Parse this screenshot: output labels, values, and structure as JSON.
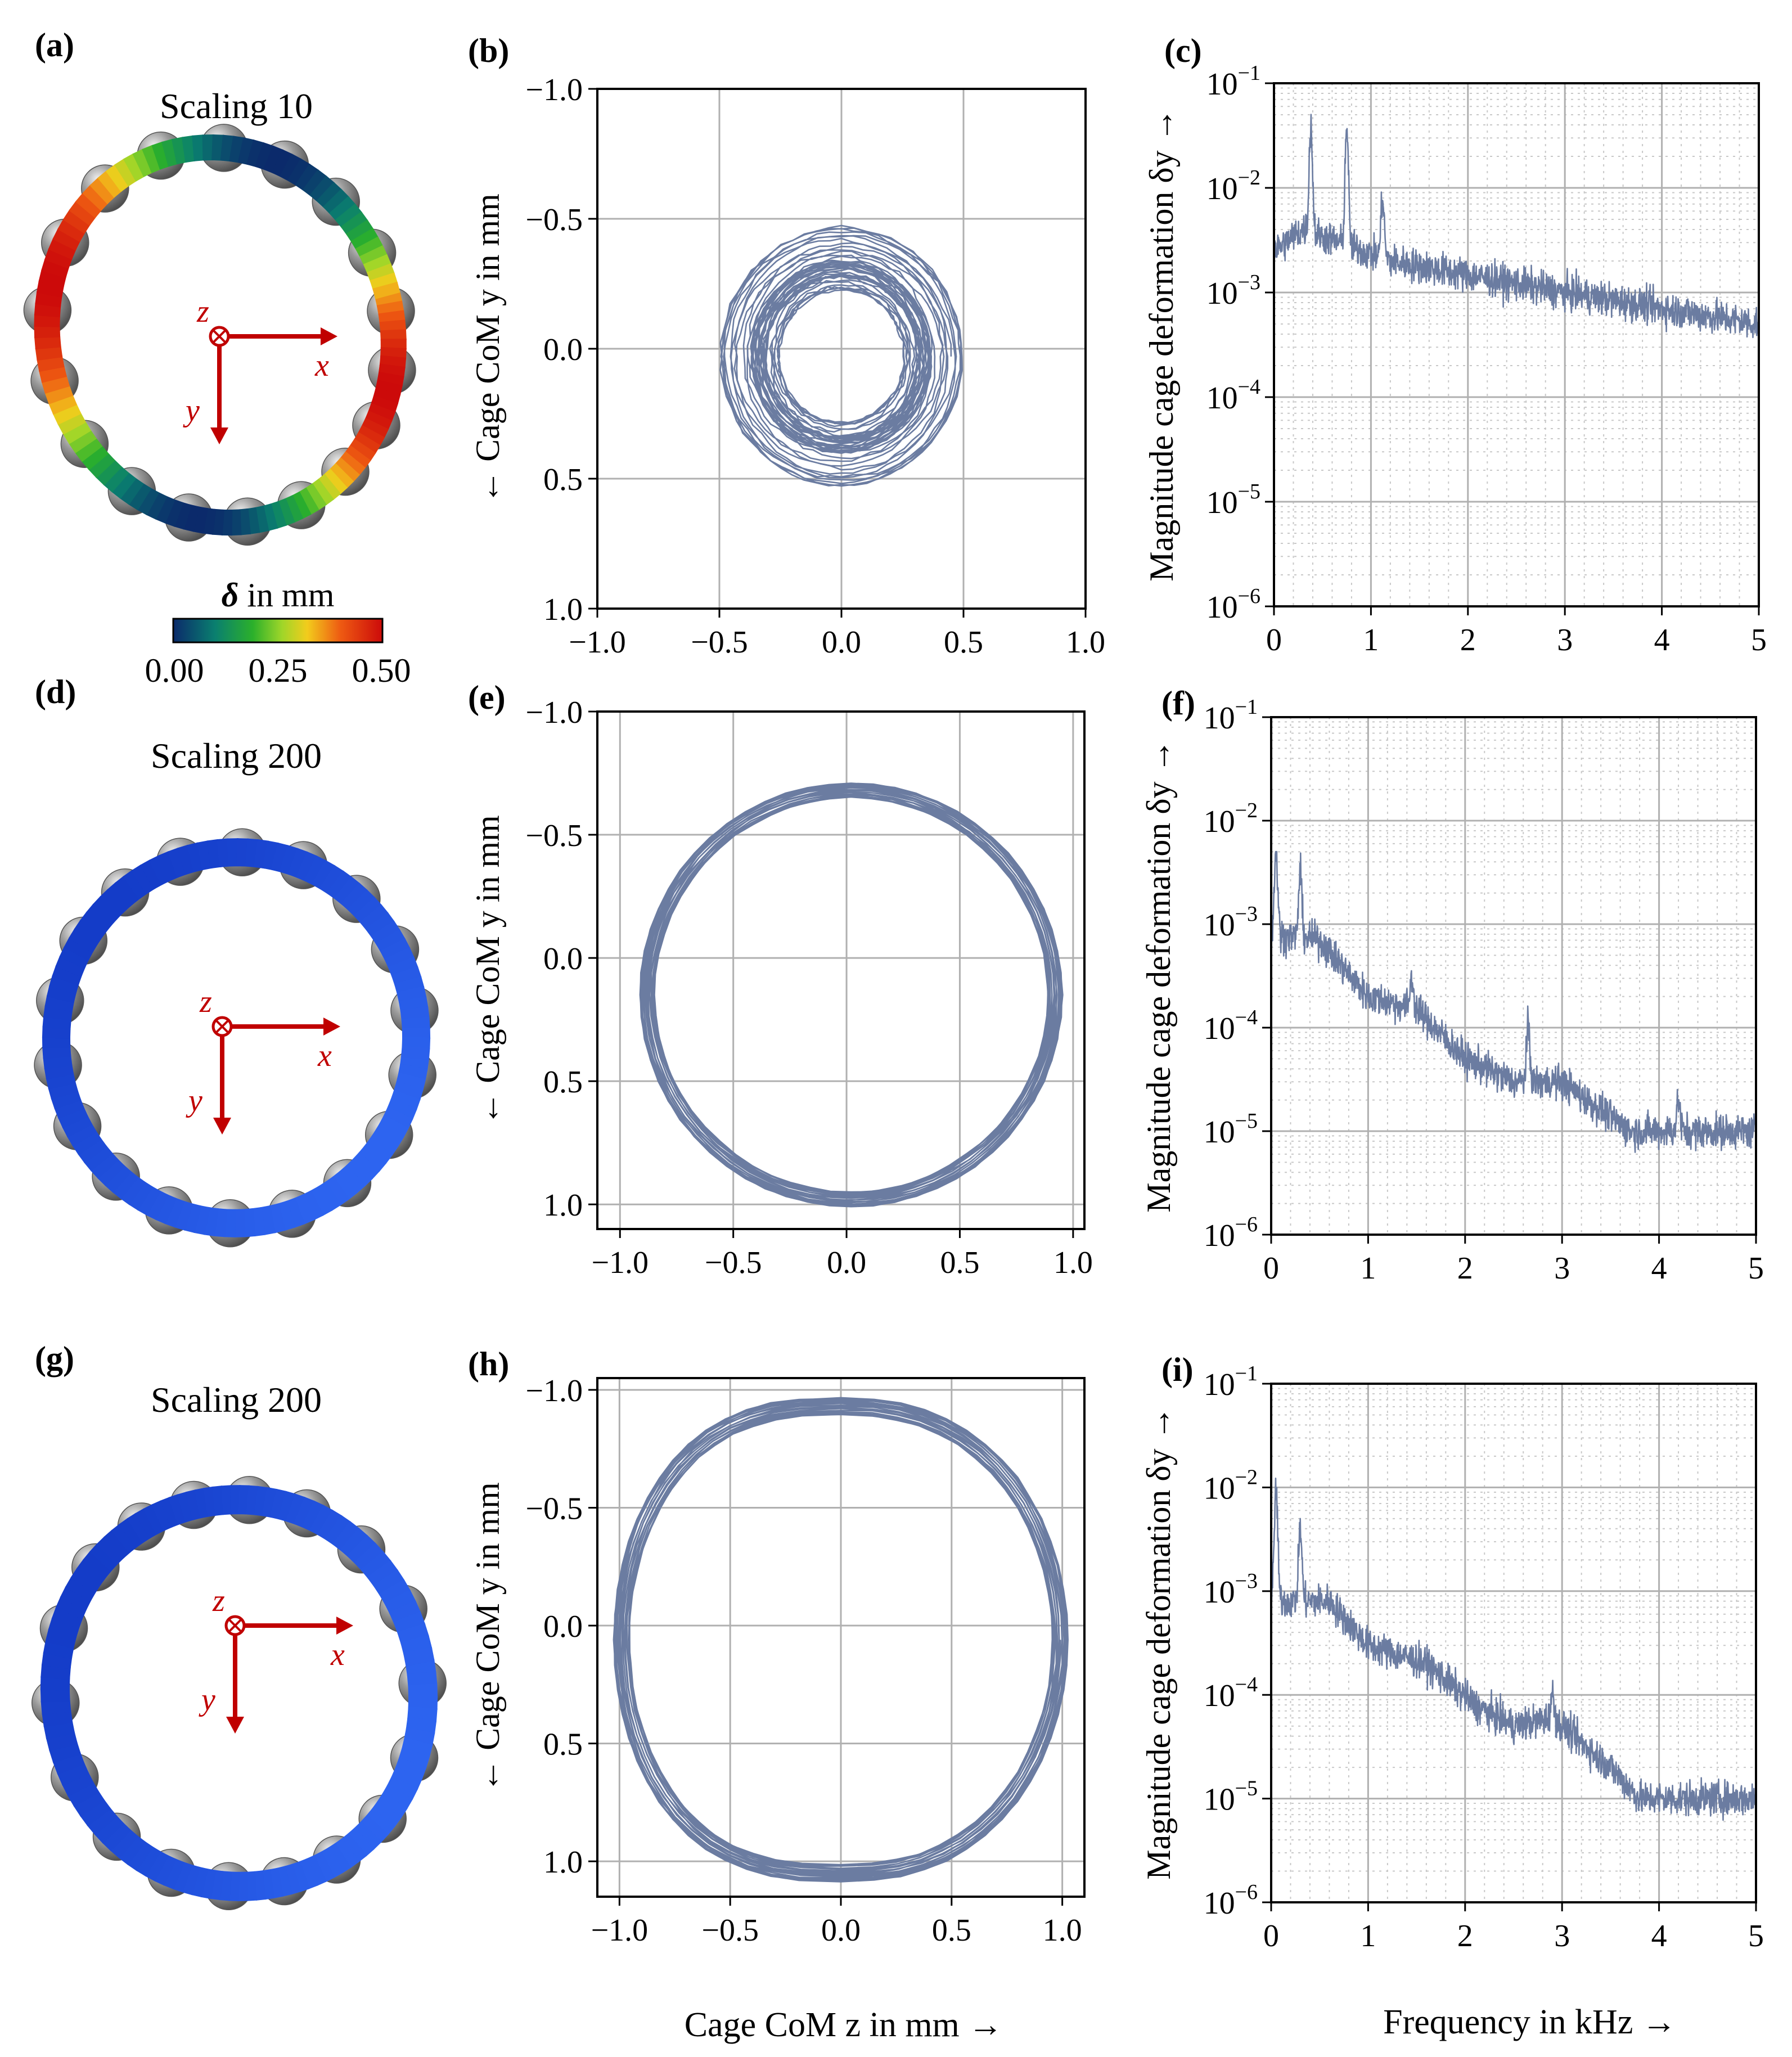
{
  "figure": {
    "xlabel_orbit": "Cage CoM z in mm →",
    "xlabel_freq": "Frequency in kHz →",
    "ylabel_orbit": "← Cage CoM y in mm",
    "ylabel_freq": "Magnitude cage deformation δy →",
    "colors": {
      "trace": "#6b7ca1",
      "axis": "#000000",
      "grid": "#b0b0b0",
      "minor_grid": "#c8c8c8",
      "arrow": "#c00000",
      "ball": "#8a8a8a"
    }
  },
  "panels": [
    {
      "id": "a",
      "letter": "(a)",
      "title": "Scaling 10",
      "colormap": "jet"
    },
    {
      "id": "d",
      "letter": "(d)",
      "title": "Scaling 200",
      "colormap": "blue"
    },
    {
      "id": "g",
      "letter": "(g)",
      "title": "Scaling 200",
      "colormap": "blue"
    }
  ],
  "axes_labels": {
    "x": "x",
    "y": "y",
    "z": "z"
  },
  "colorbar": {
    "label_symbol": "δ",
    "label_unit": " in mm",
    "ticks": [
      "0.00",
      "0.25",
      "0.50"
    ],
    "range": [
      0,
      0.5
    ]
  },
  "chart_data": [
    {
      "id": "b",
      "letter": "(b)",
      "type": "line",
      "xlim": [
        -1.0,
        1.0
      ],
      "ylim": [
        1.0,
        -1.0
      ],
      "xticks": [
        -1.0,
        -0.5,
        0.0,
        0.5,
        1.0
      ],
      "xticklabels": [
        "−1.0",
        "−0.5",
        "0.0",
        "0.5",
        "1.0"
      ],
      "yticks": [
        -1.0,
        -0.5,
        0.0,
        0.5,
        1.0
      ],
      "yticklabels": [
        "−1.0",
        "−0.5",
        "0.0",
        "0.5",
        "1.0"
      ],
      "series": [
        {
          "name": "cage CoM orbit",
          "center": [
            0.0,
            0.03
          ],
          "inner_radius": 0.22,
          "outer_radius": 0.5,
          "loops": 40
        }
      ]
    },
    {
      "id": "c",
      "letter": "(c)",
      "type": "line",
      "yscale": "log",
      "xlim": [
        0,
        5
      ],
      "ylim": [
        1e-06,
        0.1
      ],
      "xticks": [
        0,
        1,
        2,
        3,
        4,
        5
      ],
      "xticklabels": [
        "0",
        "1",
        "2",
        "3",
        "4",
        "5"
      ],
      "yticks": [
        -6,
        -5,
        -4,
        -3,
        -2,
        -1
      ],
      "ytick_base": "10",
      "series": [
        {
          "name": "spectrum",
          "base_points": [
            [
              0,
              0.0025
            ],
            [
              0.3,
              0.004
            ],
            [
              1.2,
              0.002
            ],
            [
              3,
              0.001
            ],
            [
              5,
              0.0005
            ]
          ],
          "peaks": [
            [
              0.38,
              0.04
            ],
            [
              0.75,
              0.04
            ],
            [
              1.12,
              0.008
            ]
          ]
        }
      ]
    },
    {
      "id": "e",
      "letter": "(e)",
      "type": "line",
      "xlim": [
        -1.1,
        1.05
      ],
      "ylim": [
        1.1,
        -1.0
      ],
      "xticks": [
        -1.0,
        -0.5,
        0.0,
        0.5,
        1.0
      ],
      "xticklabels": [
        "−1.0",
        "−0.5",
        "0.0",
        "0.5",
        "1.0"
      ],
      "yticks": [
        -1.0,
        -0.5,
        0.0,
        0.5,
        1.0
      ],
      "yticklabels": [
        "−1.0",
        "−0.5",
        "0.0",
        "0.5",
        "1.0"
      ],
      "series": [
        {
          "name": "cage CoM orbit",
          "center": [
            0.02,
            0.15
          ],
          "radius_x": 0.9,
          "radius_y": 0.83,
          "loops": 22
        }
      ]
    },
    {
      "id": "f",
      "letter": "(f)",
      "type": "line",
      "yscale": "log",
      "xlim": [
        0,
        5
      ],
      "ylim": [
        1e-06,
        0.1
      ],
      "xticks": [
        0,
        1,
        2,
        3,
        4,
        5
      ],
      "xticklabels": [
        "0",
        "1",
        "2",
        "3",
        "4",
        "5"
      ],
      "yticks": [
        -6,
        -5,
        -4,
        -3,
        -2,
        -1
      ],
      "ytick_base": "10",
      "series": [
        {
          "name": "spectrum",
          "base_points": [
            [
              0,
              0.0008
            ],
            [
              0.5,
              0.0007
            ],
            [
              1.0,
              0.0002
            ],
            [
              1.5,
              0.00015
            ],
            [
              2.0,
              5e-05
            ],
            [
              2.5,
              3e-05
            ],
            [
              3.0,
              3e-05
            ],
            [
              3.7,
              1e-05
            ],
            [
              5,
              1e-05
            ]
          ],
          "peaks": [
            [
              0.05,
              0.005
            ],
            [
              0.3,
              0.003
            ],
            [
              1.45,
              0.0003
            ],
            [
              2.65,
              0.0001
            ],
            [
              4.2,
              2e-05
            ]
          ]
        }
      ]
    },
    {
      "id": "h",
      "letter": "(h)",
      "type": "line",
      "xlim": [
        -1.1,
        1.1
      ],
      "ylim": [
        1.15,
        -1.05
      ],
      "xticks": [
        -1.0,
        -0.5,
        0.0,
        0.5,
        1.0
      ],
      "xticklabels": [
        "−1.0",
        "−0.5",
        "0.0",
        "0.5",
        "1.0"
      ],
      "yticks": [
        -1.0,
        -0.5,
        0.0,
        0.5,
        1.0
      ],
      "yticklabels": [
        "−1.0",
        "−0.5",
        "0.0",
        "0.5",
        "1.0"
      ],
      "series": [
        {
          "name": "cage CoM orbit",
          "center": [
            0.0,
            0.06
          ],
          "radius_x": 0.99,
          "radius_y": 0.99,
          "loops": 22
        }
      ]
    },
    {
      "id": "i",
      "letter": "(i)",
      "type": "line",
      "yscale": "log",
      "xlim": [
        0,
        5
      ],
      "ylim": [
        1e-06,
        0.1
      ],
      "xticks": [
        0,
        1,
        2,
        3,
        4,
        5
      ],
      "xticklabels": [
        "0",
        "1",
        "2",
        "3",
        "4",
        "5"
      ],
      "yticks": [
        -6,
        -5,
        -4,
        -3,
        -2,
        -1
      ],
      "ytick_base": "10",
      "series": [
        {
          "name": "spectrum",
          "base_points": [
            [
              0,
              0.0008
            ],
            [
              0.6,
              0.0008
            ],
            [
              1.0,
              0.0003
            ],
            [
              1.6,
              0.0002
            ],
            [
              2.1,
              8e-05
            ],
            [
              2.5,
              5e-05
            ],
            [
              2.9,
              6e-05
            ],
            [
              3.5,
              2e-05
            ],
            [
              3.8,
              1e-05
            ],
            [
              5,
              1e-05
            ]
          ],
          "peaks": [
            [
              0.05,
              0.01
            ],
            [
              0.3,
              0.004
            ],
            [
              2.9,
              0.0001
            ]
          ]
        }
      ]
    }
  ]
}
